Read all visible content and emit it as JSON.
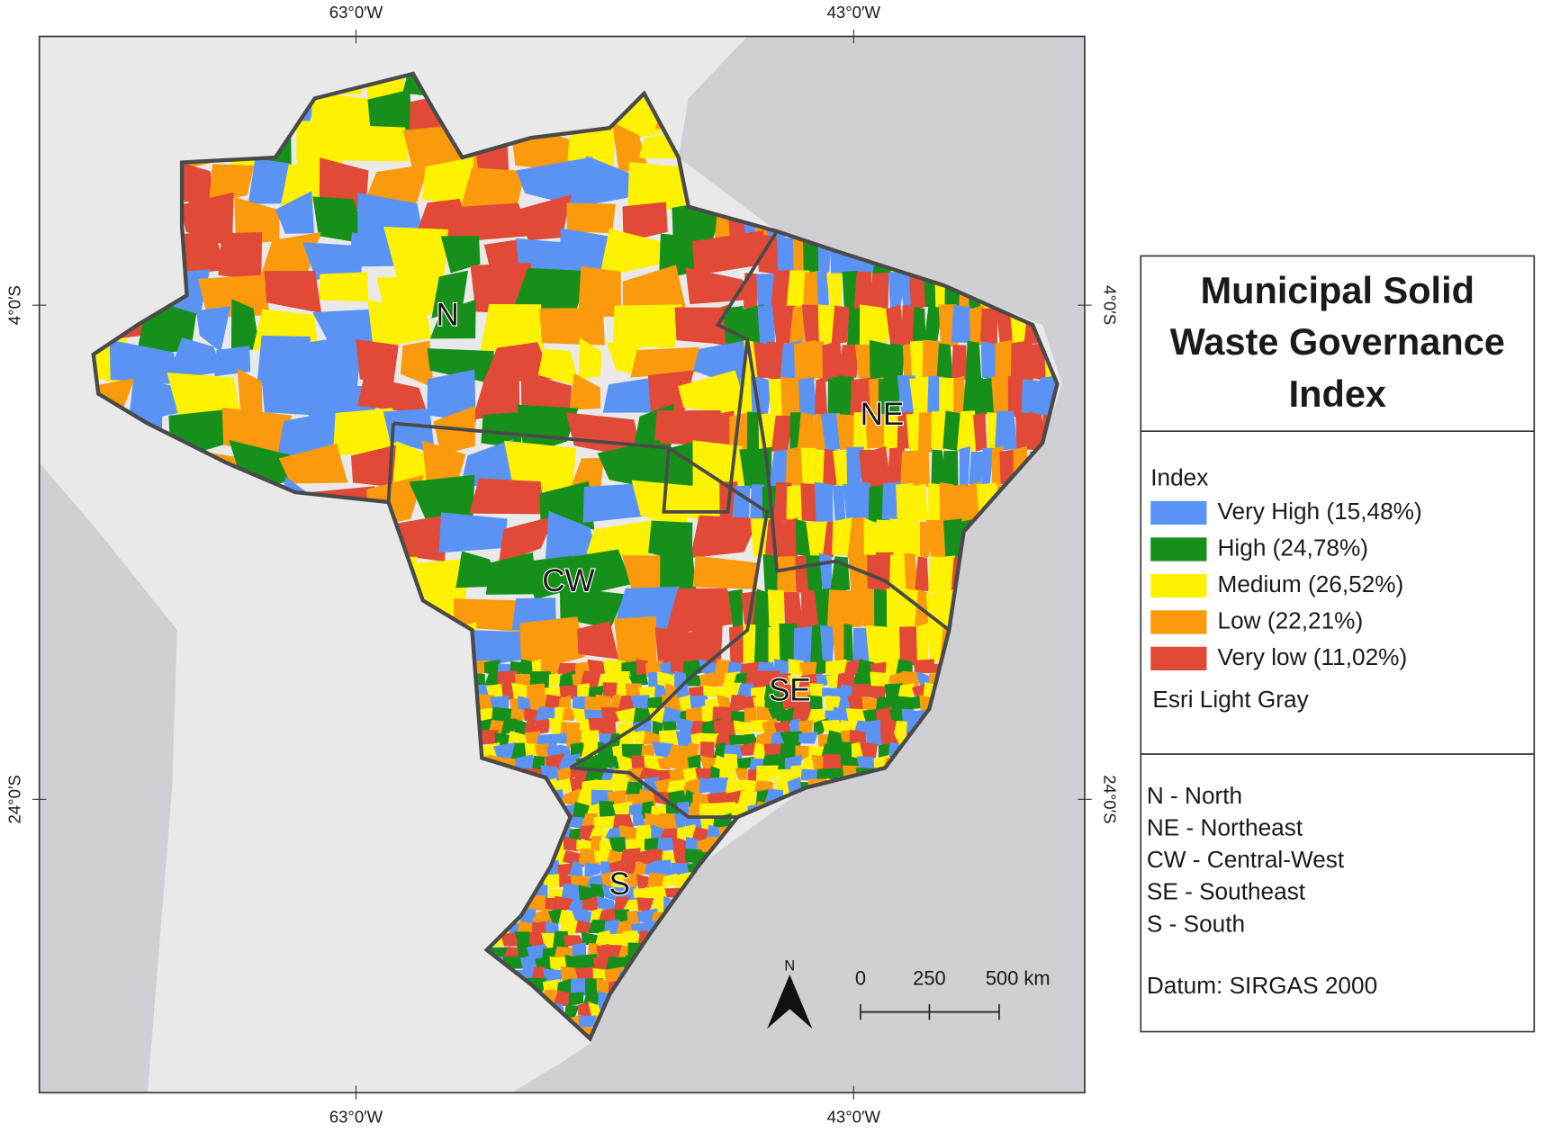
{
  "map": {
    "title_lines": [
      "Municipal Solid",
      "Waste Governance",
      "Index"
    ],
    "legend_heading": "Index",
    "legend": [
      {
        "label": "Very High (15,48%)",
        "color": "#5b93f5"
      },
      {
        "label": "High (24,78%)",
        "color": "#16901a"
      },
      {
        "label": "Medium (26,52%)",
        "color": "#fff200"
      },
      {
        "label": "Low (22,21%)",
        "color": "#fb9a0c"
      },
      {
        "label": "Very low (11,02%)",
        "color": "#e04a36"
      }
    ],
    "basemap": "Esri Light Gray",
    "region_notes": [
      "N - North",
      "NE - Northeast",
      "CW - Central-West",
      "SE - Southeast",
      "S - South"
    ],
    "datum": "Datum: SIRGAS 2000",
    "region_labels": [
      "N",
      "NE",
      "CW",
      "SE",
      "S"
    ],
    "graticule": {
      "top": [
        "63°0′W",
        "43°0′W"
      ],
      "bottom": [
        "63°0′W",
        "43°0′W"
      ],
      "left": [
        "4°0′S",
        "24°0′S"
      ],
      "right": [
        "4°0′S",
        "24°0′S"
      ]
    },
    "north_arrow": "N",
    "scale_bar": [
      "0",
      "250",
      "500 km"
    ]
  }
}
